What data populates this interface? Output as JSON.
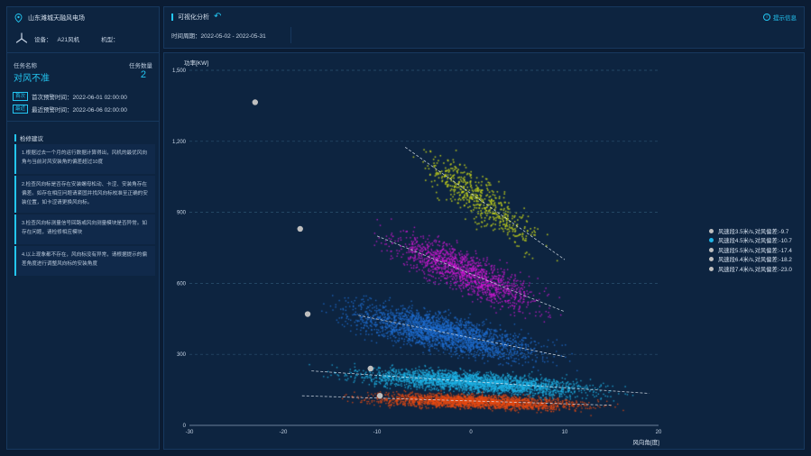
{
  "left": {
    "site_name": "山东潍城天融风电场",
    "device_label": "设备：",
    "device_value": "A21风机",
    "model_label": "机型：",
    "model_value": "",
    "task_name_label": "任务名称",
    "task_name": "对风不准",
    "task_count_label": "任务数量",
    "task_count": "2",
    "first_tag": "首次",
    "first_text": "首次预警时间：2022-06-01 02:00:00",
    "last_tag": "最近",
    "last_text": "最近预警时间：2022-06-06 02:00:00",
    "suggest_title": "检修建议",
    "suggestions": [
      "1.根据过去一个月的运行数据计算得出，风机的最优风向角与当前对风安装角的偏差超过10度",
      "2.检查风向标是否存在安装螺母松动、卡涩、安装角存在偏差。如存在相应问题请紧固并找风向标校准至正确的安装位置，如卡涩请更换风向标。",
      "3.检查风向标测量信号回路或风向测量模块是否异常。如存在问题，请检修相应模块",
      "4.以上现象都不存在，风向标没有异常，请根据提示的偏差角度进行调整风向标的安装角度"
    ]
  },
  "top": {
    "title": "可视化分析",
    "time_text": "时间周期：2022-05-02 - 2022-05-31",
    "hint": "提示信息"
  },
  "colors": {
    "accent": "#23c6f2",
    "panel": "#0d2440",
    "background": "#0b1c33"
  },
  "icons": {
    "location": "location-pin-icon",
    "turbine": "wind-turbine-icon",
    "back": "back-arrow-icon",
    "hint": "info-circle-icon"
  },
  "chart_data": {
    "type": "scatter",
    "title": "",
    "ylabel": "功率[KW]",
    "xlabel": "风向角[度]",
    "xlim": [
      -30,
      20
    ],
    "ylim": [
      0,
      1500
    ],
    "xticks": [
      -30,
      -20,
      -10,
      0,
      10,
      20
    ],
    "yticks": [
      0,
      300,
      600,
      900,
      1200,
      1500
    ],
    "ytick_labels": [
      "0",
      "300",
      "600",
      "900",
      "1,200",
      "1,500"
    ],
    "grid": "horizontal dashed",
    "legend_position": "right",
    "series": [
      {
        "name": "风速段3.5米/s,对风偏差:-9.7",
        "color": "#e84a12",
        "legend_color": "#bfbfbf",
        "x_range": [
          -16,
          17
        ],
        "y_center": 120,
        "y_spread": 50,
        "trend": [
          [
            -18,
            125
          ],
          [
            15,
            85
          ]
        ],
        "peak": {
          "x": -9.7,
          "y": 125
        }
      },
      {
        "name": "风速段4.5米/s,对风偏差:-10.7",
        "color": "#1fb4e6",
        "legend_color": "#1fb4e6",
        "x_range": [
          -18,
          19
        ],
        "y_center": 245,
        "y_spread": 70,
        "trend": [
          [
            -17,
            230
          ],
          [
            19,
            135
          ]
        ],
        "peak": {
          "x": -10.7,
          "y": 240
        }
      },
      {
        "name": "风速段5.5米/s,对风偏差:-17.4",
        "color": "#1e6fd2",
        "legend_color": "#bfbfbf",
        "x_range": [
          -18,
          12
        ],
        "y_center": 420,
        "y_spread": 130,
        "trend": [
          [
            -12,
            465
          ],
          [
            10,
            290
          ]
        ],
        "peak": {
          "x": -17.4,
          "y": 470
        }
      },
      {
        "name": "风速段6.4米/s,对风偏差:-18.2",
        "color": "#d118d6",
        "legend_color": "#bfbfbf",
        "x_range": [
          -12,
          11
        ],
        "y_center": 680,
        "y_spread": 150,
        "trend": [
          [
            -10,
            800
          ],
          [
            10,
            480
          ]
        ],
        "peak": {
          "x": -18.2,
          "y": 830
        }
      },
      {
        "name": "风速段7.4米/s,对风偏差:-23.0",
        "color": "#c8d61a",
        "legend_color": "#bfbfbf",
        "x_range": [
          -8,
          10
        ],
        "y_center": 950,
        "y_spread": 170,
        "trend": [
          [
            -7,
            1175
          ],
          [
            10,
            700
          ]
        ],
        "peak": {
          "x": -23.0,
          "y": 1365
        }
      }
    ]
  }
}
